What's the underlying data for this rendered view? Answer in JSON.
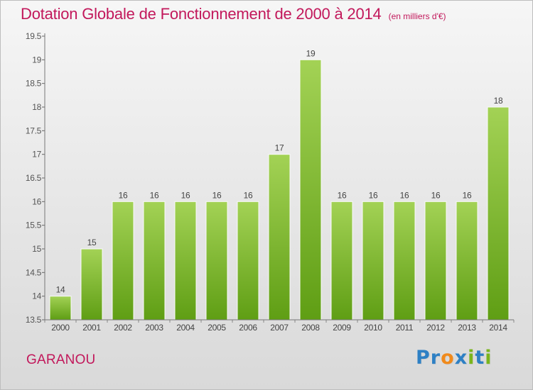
{
  "header": {
    "title": "Dotation Globale de Fonctionnement de 2000 à 2014",
    "unit": "(en milliers d'€)"
  },
  "footer": {
    "commune": "GARANOU",
    "logo": "Proxiti"
  },
  "colors": {
    "title": "#c2185b",
    "bar_light": "#a3d255",
    "bar_dark": "#5f9e14",
    "logo_letters": [
      "#2e80c4",
      "#2e80c4",
      "#f08a1c",
      "#2e80c4",
      "#7ab51d",
      "#2e80c4",
      "#7ab51d"
    ]
  },
  "chart_data": {
    "type": "bar",
    "categories": [
      "2000",
      "2001",
      "2002",
      "2003",
      "2004",
      "2005",
      "2006",
      "2007",
      "2008",
      "2009",
      "2010",
      "2011",
      "2012",
      "2013",
      "2014"
    ],
    "values": [
      14,
      15,
      16,
      16,
      16,
      16,
      16,
      17,
      19,
      16,
      16,
      16,
      16,
      16,
      18
    ],
    "data_labels": [
      "14",
      "15",
      "16",
      "16",
      "16",
      "16",
      "16",
      "17",
      "19",
      "16",
      "16",
      "16",
      "16",
      "16",
      "18"
    ],
    "ylim": [
      13.5,
      19.5
    ],
    "yticks": [
      "13.5",
      "14",
      "14.5",
      "15",
      "15.5",
      "16",
      "16.5",
      "17",
      "17.5",
      "18",
      "18.5",
      "19",
      "19.5"
    ],
    "title": "Dotation Globale de Fonctionnement de 2000 à 2014",
    "xlabel": "",
    "ylabel": "",
    "grid": false,
    "legend": "none"
  }
}
